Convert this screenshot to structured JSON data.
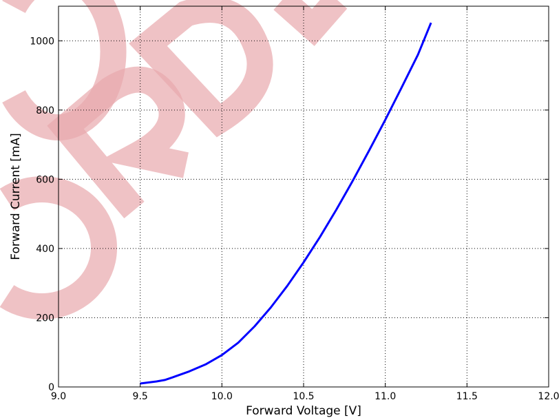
{
  "chart_data": {
    "type": "line",
    "xlabel": "Forward Voltage [V]",
    "ylabel": "Forward Current [mA]",
    "xlim": [
      9.0,
      12.0
    ],
    "ylim": [
      0,
      1100
    ],
    "xticks": [
      9.0,
      9.5,
      10.0,
      10.5,
      11.0,
      11.5,
      12.0
    ],
    "xtick_labels": [
      "9.0",
      "9.5",
      "10.0",
      "10.5",
      "11.0",
      "11.5",
      "12.0"
    ],
    "yticks": [
      0,
      200,
      400,
      600,
      800,
      1000
    ],
    "ytick_labels": [
      "0",
      "200",
      "400",
      "600",
      "800",
      "1000"
    ],
    "grid": true,
    "series": [
      {
        "color": "#0000ff",
        "x": [
          9.5,
          9.6,
          9.65,
          9.7,
          9.8,
          9.9,
          10.0,
          10.1,
          10.2,
          10.3,
          10.4,
          10.5,
          10.6,
          10.7,
          10.8,
          10.9,
          11.0,
          11.1,
          11.2,
          11.28
        ],
        "y": [
          10,
          16,
          20,
          28,
          45,
          65,
          92,
          128,
          175,
          230,
          292,
          360,
          433,
          512,
          595,
          682,
          772,
          865,
          960,
          1052
        ]
      }
    ]
  },
  "watermark": {
    "text": "ORDER",
    "color": "#e8a8ad"
  }
}
